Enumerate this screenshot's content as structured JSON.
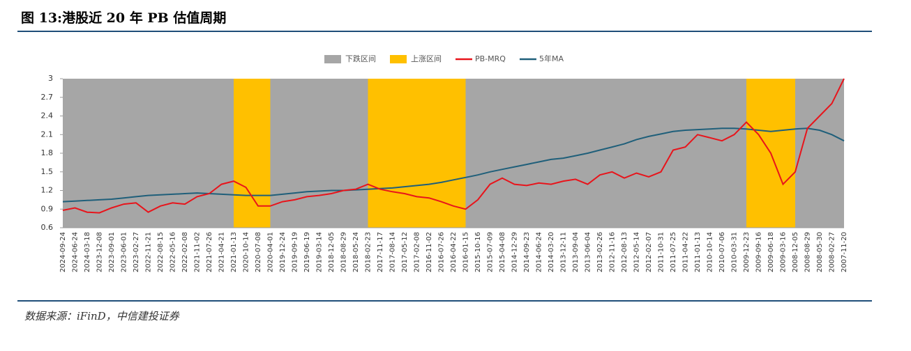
{
  "title": "图 13:港股近 20 年 PB 估值周期",
  "source": "数据来源：iFinD，中信建投证券",
  "chart_data": {
    "type": "line",
    "categories": [
      "2024-09-24",
      "2024-06-24",
      "2024-03-18",
      "2023-12-08",
      "2023-09-01",
      "2023-06-01",
      "2023-02-27",
      "2022-11-21",
      "2022-08-15",
      "2022-05-16",
      "2022-02-08",
      "2021-11-02",
      "2021-07-26",
      "2021-04-21",
      "2021-01-13",
      "2020-10-14",
      "2020-07-08",
      "2020-04-01",
      "2019-12-24",
      "2019-09-19",
      "2019-06-19",
      "2019-03-14",
      "2018-12-05",
      "2018-08-29",
      "2018-05-24",
      "2018-02-23",
      "2017-11-17",
      "2017-08-14",
      "2017-05-12",
      "2017-02-08",
      "2016-11-02",
      "2016-07-26",
      "2016-04-22",
      "2016-01-15",
      "2015-10-16",
      "2015-07-09",
      "2015-04-08",
      "2014-12-29",
      "2014-09-23",
      "2014-06-24",
      "2014-03-20",
      "2013-12-11",
      "2013-09-04",
      "2013-06-04",
      "2013-02-26",
      "2012-11-16",
      "2012-08-13",
      "2012-05-14",
      "2012-02-07",
      "2011-10-31",
      "2011-07-25",
      "2011-04-22",
      "2011-01-13",
      "2010-10-14",
      "2010-07-06",
      "2010-03-31",
      "2009-12-23",
      "2009-09-16",
      "2009-06-18",
      "2009-03-16",
      "2008-12-05",
      "2008-08-29",
      "2008-05-30",
      "2008-02-27",
      "2007-11-20"
    ],
    "bands": [
      {
        "name": "下跌区间",
        "color": "#a6a6a6",
        "spans": [
          [
            "2024-09-24",
            "2021-01-13"
          ],
          [
            "2020-04-01",
            "2018-02-23"
          ],
          [
            "2016-01-15",
            "2009-12-23"
          ],
          [
            "2008-12-05",
            "2007-11-20"
          ]
        ]
      },
      {
        "name": "上涨区间",
        "color": "#ffc000",
        "spans": [
          [
            "2021-01-13",
            "2020-04-01"
          ],
          [
            "2018-02-23",
            "2016-01-15"
          ],
          [
            "2009-12-23",
            "2008-12-05"
          ]
        ]
      }
    ],
    "series": [
      {
        "name": "PB-MRQ",
        "color": "#e8141b",
        "values": [
          0.88,
          0.92,
          0.85,
          0.84,
          0.92,
          0.98,
          1.0,
          0.85,
          0.95,
          1.0,
          0.98,
          1.1,
          1.15,
          1.3,
          1.35,
          1.25,
          0.95,
          0.95,
          1.02,
          1.05,
          1.1,
          1.12,
          1.15,
          1.2,
          1.22,
          1.3,
          1.22,
          1.18,
          1.15,
          1.1,
          1.08,
          1.02,
          0.95,
          0.9,
          1.05,
          1.3,
          1.4,
          1.3,
          1.28,
          1.32,
          1.3,
          1.35,
          1.38,
          1.3,
          1.45,
          1.5,
          1.4,
          1.48,
          1.42,
          1.5,
          1.85,
          1.9,
          2.1,
          2.05,
          2.0,
          2.1,
          2.3,
          2.1,
          1.8,
          1.3,
          1.5,
          2.2,
          2.4,
          2.6,
          3.0
        ]
      },
      {
        "name": "5年MA",
        "color": "#1f5f7a",
        "values": [
          1.02,
          1.03,
          1.04,
          1.05,
          1.06,
          1.08,
          1.1,
          1.12,
          1.13,
          1.14,
          1.15,
          1.16,
          1.15,
          1.14,
          1.13,
          1.12,
          1.12,
          1.12,
          1.14,
          1.16,
          1.18,
          1.19,
          1.2,
          1.2,
          1.21,
          1.22,
          1.23,
          1.24,
          1.26,
          1.28,
          1.3,
          1.33,
          1.37,
          1.41,
          1.45,
          1.5,
          1.54,
          1.58,
          1.62,
          1.66,
          1.7,
          1.72,
          1.76,
          1.8,
          1.85,
          1.9,
          1.95,
          2.02,
          2.07,
          2.11,
          2.15,
          2.17,
          2.18,
          2.19,
          2.2,
          2.2,
          2.19,
          2.17,
          2.15,
          2.17,
          2.19,
          2.2,
          2.17,
          2.1,
          2.0
        ]
      }
    ],
    "ylim": [
      0.6,
      3
    ],
    "yticks": [
      0.6,
      0.9,
      1.2,
      1.5,
      1.8,
      2.1,
      2.4,
      2.7,
      3
    ]
  }
}
